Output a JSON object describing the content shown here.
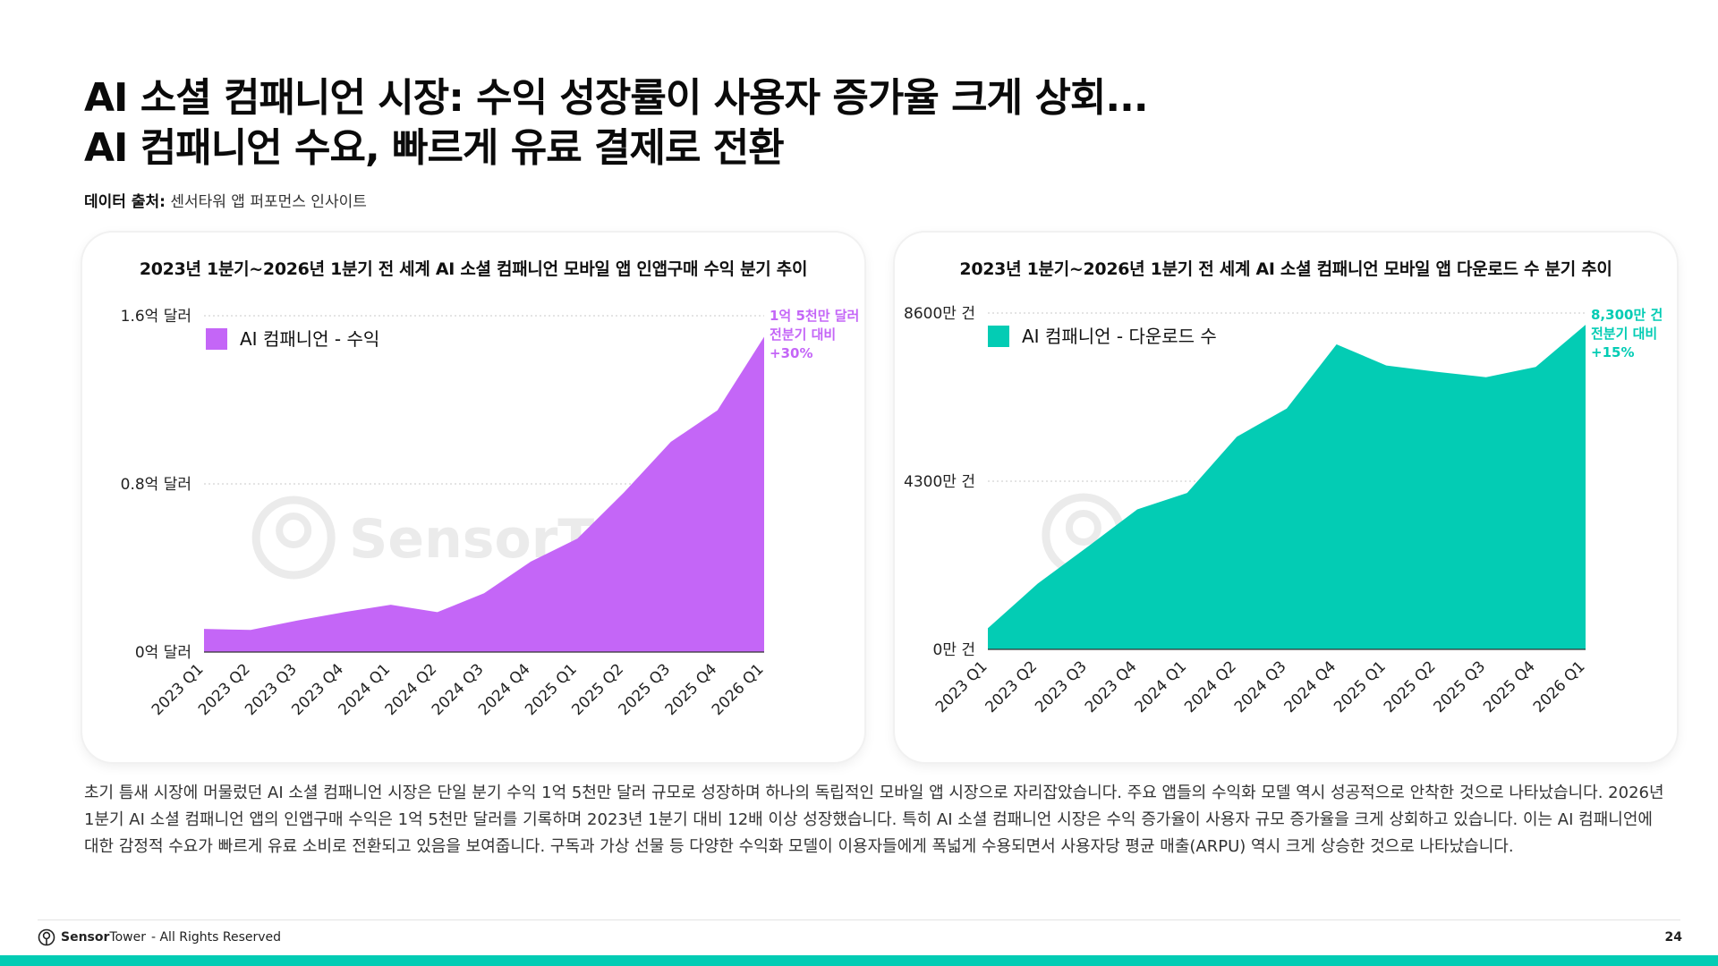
{
  "title": {
    "line1": "AI 소셜 컴패니언 시장: 수익 성장률이 사용자 증가율 크게 상회...",
    "line2": "AI 컴패니언 수요, 빠르게 유료 결제로 전환"
  },
  "source": {
    "label": "데이터 출처:",
    "value": "센서타워 앱 퍼포먼스 인사이트"
  },
  "watermark": "SensorTower",
  "chart_data": [
    {
      "type": "area",
      "title": "2023년 1분기~2026년 1분기 전 세계 AI 소셜 컴패니언 모바일 앱 인앱구매 수익 분기 추이",
      "categories": [
        "2023 Q1",
        "2023 Q2",
        "2023 Q3",
        "2023 Q4",
        "2024 Q1",
        "2024 Q2",
        "2024 Q3",
        "2024 Q4",
        "2025 Q1",
        "2025 Q2",
        "2025 Q3",
        "2025 Q4",
        "2026 Q1"
      ],
      "series": [
        {
          "name": "AI 컴패니언 - 수익",
          "color": "#c466f7",
          "values": [
            0.11,
            0.105,
            0.15,
            0.19,
            0.225,
            0.19,
            0.28,
            0.43,
            0.54,
            0.76,
            1.0,
            1.15,
            1.5
          ]
        }
      ],
      "y_ticks": [
        {
          "value": 0,
          "label": "0억 달러"
        },
        {
          "value": 0.8,
          "label": "0.8억 달러"
        },
        {
          "value": 1.6,
          "label": "1.6억 달러"
        }
      ],
      "ylim": [
        0,
        1.6
      ],
      "grid": true,
      "legend": "top-left",
      "annotation": [
        "1억 5천만 달러",
        "전분기 대비",
        "+30%"
      ]
    },
    {
      "type": "area",
      "title": "2023년 1분기~2026년 1분기 전 세계 AI 소셜 컴패니언 모바일 앱 다운로드 수 분기 추이",
      "categories": [
        "2023 Q1",
        "2023 Q2",
        "2023 Q3",
        "2023 Q4",
        "2024 Q1",
        "2024 Q2",
        "2024 Q3",
        "2024 Q4",
        "2025 Q1",
        "2025 Q2",
        "2025 Q3",
        "2025 Q4",
        "2026 Q1"
      ],
      "series": [
        {
          "name": "AI 컴패니언 - 다운로드 수",
          "color": "#03ccb4",
          "values": [
            540,
            1680,
            2620,
            3580,
            4000,
            5440,
            6160,
            7800,
            7260,
            7100,
            6960,
            7220,
            8300
          ]
        }
      ],
      "y_ticks": [
        {
          "value": 0,
          "label": "0만 건"
        },
        {
          "value": 4300,
          "label": "4300만 건"
        },
        {
          "value": 8600,
          "label": "8600만 건"
        }
      ],
      "ylim": [
        0,
        8600
      ],
      "grid": true,
      "legend": "top-left",
      "annotation": [
        "8,300만 건",
        "전분기 대비",
        "+15%"
      ]
    }
  ],
  "body_text": "초기 틈새 시장에 머물렀던 AI 소셜 컴패니언 시장은 단일 분기 수익 1억 5천만 달러 규모로 성장하며 하나의 독립적인 모바일 앱 시장으로 자리잡았습니다. 주요 앱들의 수익화 모델 역시 성공적으로 안착한 것으로 나타났습니다. 2026년 1분기 AI 소셜 컴패니언 앱의 인앱구매 수익은 1억 5천만 달러를 기록하며 2023년 1분기 대비 12배 이상 성장했습니다. 특히 AI 소셜 컴패니언 시장은 수익 증가율이 사용자 규모 증가율을 크게 상회하고 있습니다. 이는 AI 컴패니언에 대한 감정적 수요가 빠르게 유료 소비로 전환되고 있음을 보여줍니다. 구독과 가상 선물 등 다양한 수익화 모델이 이용자들에게 폭넓게 수용되면서 사용자당 평균 매출(ARPU) 역시 크게 상승한 것으로 나타났습니다.",
  "footer": {
    "brand_a": "Sensor",
    "brand_b": "Tower",
    "rights": "- All Rights Reserved",
    "page": "24"
  },
  "colors": {
    "accent_bar": "#03ccb4",
    "watermark": "#ebebeb"
  },
  "icons": {
    "footer_logo": "sensortower-logo-icon"
  }
}
